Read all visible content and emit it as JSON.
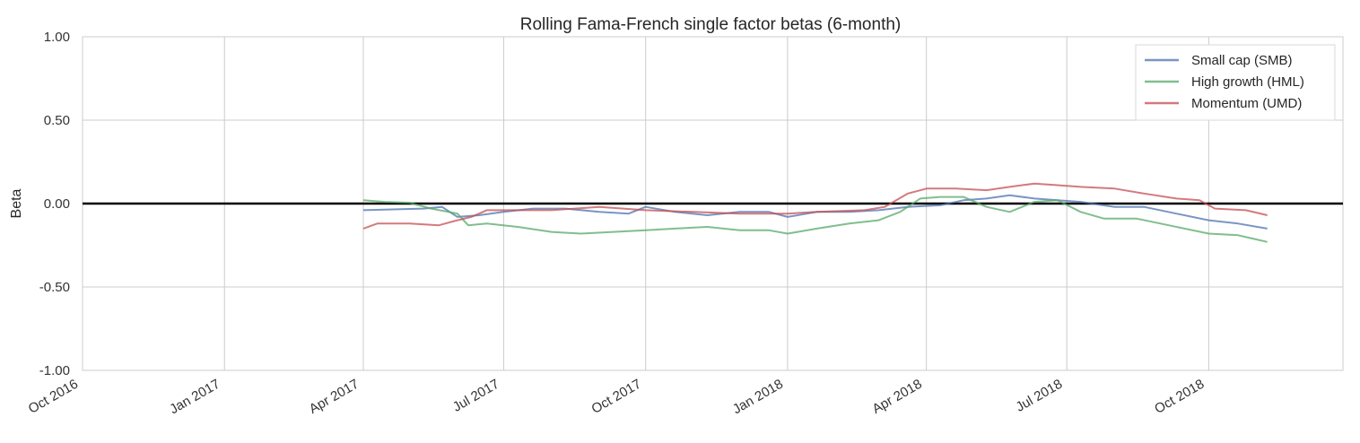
{
  "chart_data": {
    "type": "line",
    "title": "Rolling Fama-French single factor betas (6-month)",
    "xlabel": "",
    "ylabel": "Beta",
    "xlim": [
      "2016-10-01",
      "2018-12-27"
    ],
    "ylim": [
      -1.0,
      1.0
    ],
    "yticks": [
      1.0,
      0.5,
      0.0,
      -0.5,
      -1.0
    ],
    "ytick_labels": [
      "1.00",
      "0.50",
      "0.00",
      "-0.50",
      "-1.00"
    ],
    "xticks": [
      "2016-10-01",
      "2017-01-01",
      "2017-04-01",
      "2017-07-01",
      "2017-10-01",
      "2018-01-01",
      "2018-04-01",
      "2018-07-01",
      "2018-10-01"
    ],
    "xtick_labels": [
      "Oct 2016",
      "Jan 2017",
      "Apr 2017",
      "Jul 2017",
      "Oct 2017",
      "Jan 2018",
      "Apr 2018",
      "Jul 2018",
      "Oct 2018"
    ],
    "grid": true,
    "legend_position": "top-right",
    "reference_line": 0.0,
    "series": [
      {
        "name": "Small cap (SMB)",
        "color": "#4c72b0",
        "points": [
          [
            "2017-04-01",
            -0.04
          ],
          [
            "2017-04-20",
            -0.035
          ],
          [
            "2017-05-10",
            -0.03
          ],
          [
            "2017-05-22",
            -0.02
          ],
          [
            "2017-06-01",
            -0.08
          ],
          [
            "2017-06-15",
            -0.07
          ],
          [
            "2017-07-01",
            -0.05
          ],
          [
            "2017-07-20",
            -0.03
          ],
          [
            "2017-08-10",
            -0.03
          ],
          [
            "2017-09-01",
            -0.05
          ],
          [
            "2017-09-20",
            -0.06
          ],
          [
            "2017-10-01",
            -0.02
          ],
          [
            "2017-10-20",
            -0.05
          ],
          [
            "2017-11-10",
            -0.07
          ],
          [
            "2017-12-01",
            -0.05
          ],
          [
            "2017-12-20",
            -0.05
          ],
          [
            "2018-01-01",
            -0.08
          ],
          [
            "2018-01-20",
            -0.05
          ],
          [
            "2018-02-10",
            -0.05
          ],
          [
            "2018-03-01",
            -0.04
          ],
          [
            "2018-03-20",
            -0.02
          ],
          [
            "2018-04-10",
            -0.01
          ],
          [
            "2018-04-25",
            0.02
          ],
          [
            "2018-05-10",
            0.03
          ],
          [
            "2018-05-25",
            0.05
          ],
          [
            "2018-06-10",
            0.03
          ],
          [
            "2018-06-25",
            0.02
          ],
          [
            "2018-07-10",
            0.01
          ],
          [
            "2018-08-01",
            -0.02
          ],
          [
            "2018-08-20",
            -0.02
          ],
          [
            "2018-09-10",
            -0.06
          ],
          [
            "2018-10-01",
            -0.1
          ],
          [
            "2018-10-20",
            -0.12
          ],
          [
            "2018-11-08",
            -0.15
          ]
        ]
      },
      {
        "name": "High growth (HML)",
        "color": "#55a868",
        "points": [
          [
            "2017-04-01",
            0.02
          ],
          [
            "2017-04-15",
            0.01
          ],
          [
            "2017-05-01",
            0.005
          ],
          [
            "2017-05-15",
            -0.03
          ],
          [
            "2017-06-01",
            -0.06
          ],
          [
            "2017-06-08",
            -0.13
          ],
          [
            "2017-06-20",
            -0.12
          ],
          [
            "2017-07-10",
            -0.14
          ],
          [
            "2017-08-01",
            -0.17
          ],
          [
            "2017-08-20",
            -0.18
          ],
          [
            "2017-09-10",
            -0.17
          ],
          [
            "2017-10-01",
            -0.16
          ],
          [
            "2017-10-20",
            -0.15
          ],
          [
            "2017-11-10",
            -0.14
          ],
          [
            "2017-12-01",
            -0.16
          ],
          [
            "2017-12-20",
            -0.16
          ],
          [
            "2018-01-01",
            -0.18
          ],
          [
            "2018-01-20",
            -0.15
          ],
          [
            "2018-02-10",
            -0.12
          ],
          [
            "2018-03-01",
            -0.1
          ],
          [
            "2018-03-15",
            -0.05
          ],
          [
            "2018-03-28",
            0.03
          ],
          [
            "2018-04-10",
            0.04
          ],
          [
            "2018-04-25",
            0.04
          ],
          [
            "2018-05-10",
            -0.02
          ],
          [
            "2018-05-25",
            -0.05
          ],
          [
            "2018-06-10",
            0.01
          ],
          [
            "2018-06-25",
            0.02
          ],
          [
            "2018-07-10",
            -0.05
          ],
          [
            "2018-07-25",
            -0.09
          ],
          [
            "2018-08-15",
            -0.09
          ],
          [
            "2018-09-05",
            -0.13
          ],
          [
            "2018-10-01",
            -0.18
          ],
          [
            "2018-10-20",
            -0.19
          ],
          [
            "2018-11-08",
            -0.23
          ]
        ]
      },
      {
        "name": "Momentum (UMD)",
        "color": "#c44e52",
        "points": [
          [
            "2017-04-01",
            -0.15
          ],
          [
            "2017-04-10",
            -0.12
          ],
          [
            "2017-05-01",
            -0.12
          ],
          [
            "2017-05-20",
            -0.13
          ],
          [
            "2017-06-01",
            -0.1
          ],
          [
            "2017-06-10",
            -0.08
          ],
          [
            "2017-06-20",
            -0.04
          ],
          [
            "2017-07-10",
            -0.04
          ],
          [
            "2017-08-01",
            -0.04
          ],
          [
            "2017-09-01",
            -0.02
          ],
          [
            "2017-10-01",
            -0.04
          ],
          [
            "2017-11-01",
            -0.05
          ],
          [
            "2017-12-01",
            -0.06
          ],
          [
            "2018-01-01",
            -0.06
          ],
          [
            "2018-01-20",
            -0.05
          ],
          [
            "2018-02-20",
            -0.04
          ],
          [
            "2018-03-05",
            -0.02
          ],
          [
            "2018-03-20",
            0.06
          ],
          [
            "2018-04-01",
            0.09
          ],
          [
            "2018-04-20",
            0.09
          ],
          [
            "2018-05-10",
            0.08
          ],
          [
            "2018-05-25",
            0.1
          ],
          [
            "2018-06-10",
            0.12
          ],
          [
            "2018-06-25",
            0.11
          ],
          [
            "2018-07-10",
            0.1
          ],
          [
            "2018-08-01",
            0.09
          ],
          [
            "2018-08-20",
            0.06
          ],
          [
            "2018-09-10",
            0.03
          ],
          [
            "2018-09-25",
            0.02
          ],
          [
            "2018-10-05",
            -0.03
          ],
          [
            "2018-10-25",
            -0.04
          ],
          [
            "2018-11-08",
            -0.07
          ]
        ]
      }
    ]
  }
}
